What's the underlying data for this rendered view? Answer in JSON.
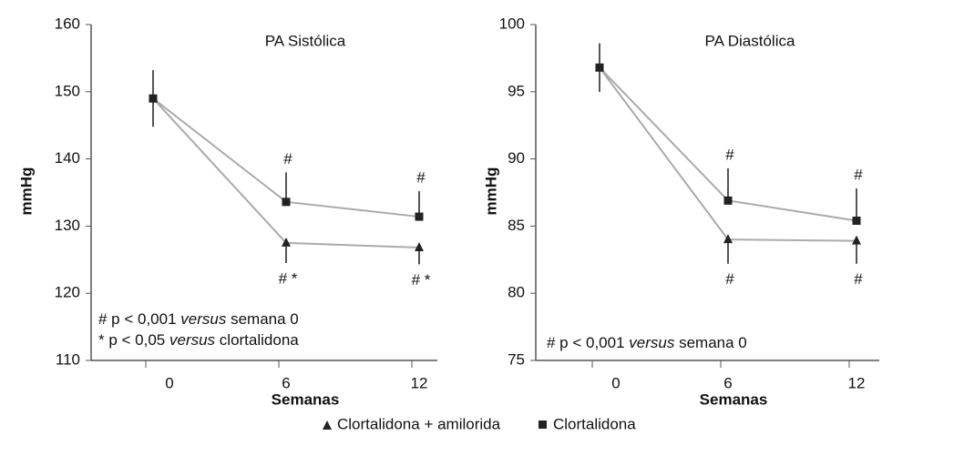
{
  "chart_data": [
    {
      "type": "line",
      "title": "PA Sistólica",
      "ylabel": "mmHg",
      "xlabel": "Semanas",
      "categories": [
        "0",
        "6",
        "12"
      ],
      "ylim": [
        110,
        160
      ],
      "yticks": [
        110,
        120,
        130,
        140,
        150,
        160
      ],
      "series": [
        {
          "name": "Clortalidona + amilorida",
          "color": "#aaaaaa",
          "marker": "triangle",
          "values": [
            149,
            127.5,
            126.8
          ],
          "errors": [
            4.2,
            3,
            2.5
          ],
          "point_labels": [
            null,
            "# *",
            "# *"
          ]
        },
        {
          "name": "Clortalidona",
          "color": "#aaaaaa",
          "marker": "square",
          "values": [
            149,
            133.6,
            131.4
          ],
          "errors": [
            4.2,
            4.4,
            3.8
          ],
          "point_labels": [
            null,
            "#",
            "#"
          ]
        }
      ],
      "notes": [
        [
          "# p < 0,001 ",
          "versus",
          " semana 0"
        ],
        [
          "* p < 0,05 ",
          "versus",
          " clortalidona"
        ]
      ]
    },
    {
      "type": "line",
      "title": "PA Diastólica",
      "ylabel": "mmHg",
      "xlabel": "Semanas",
      "categories": [
        "0",
        "6",
        "12"
      ],
      "ylim": [
        75,
        100
      ],
      "yticks": [
        75,
        80,
        85,
        90,
        95,
        100
      ],
      "series": [
        {
          "name": "Clortalidona + amilorida",
          "color": "#aaaaaa",
          "marker": "triangle",
          "values": [
            96.8,
            84.0,
            83.9
          ],
          "errors": [
            1.8,
            1.8,
            1.7
          ],
          "point_labels": [
            null,
            "#",
            "#"
          ]
        },
        {
          "name": "Clortalidona",
          "color": "#aaaaaa",
          "marker": "square",
          "values": [
            96.8,
            86.9,
            85.4
          ],
          "errors": [
            1.8,
            2.4,
            2.4
          ],
          "point_labels": [
            null,
            "#",
            "#"
          ]
        }
      ],
      "notes": [
        [
          "# p < 0,001 ",
          "versus",
          " semana 0"
        ]
      ]
    }
  ]
}
